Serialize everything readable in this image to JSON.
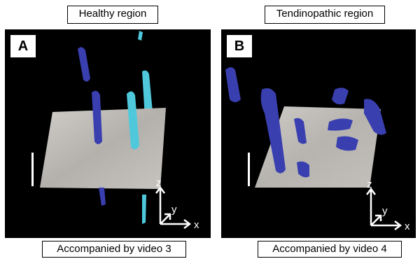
{
  "panels": [
    {
      "header": "Healthy region",
      "label": "A",
      "footer": "Accompanied by video 3",
      "axes": {
        "z": "z",
        "y": "y",
        "x": "x"
      }
    },
    {
      "header": "Tendinopathic region",
      "label": "B",
      "footer": "Accompanied by video 4",
      "axes": {
        "z": "z",
        "y": "y",
        "x": "x"
      }
    }
  ],
  "colors": {
    "background": "#000000",
    "tissue_sheet": "#b8b5b0",
    "fiber_dark_blue": "#3a3fb0",
    "fiber_light_blue": "#4fc8dc",
    "scale_bar": "#ffffff"
  }
}
